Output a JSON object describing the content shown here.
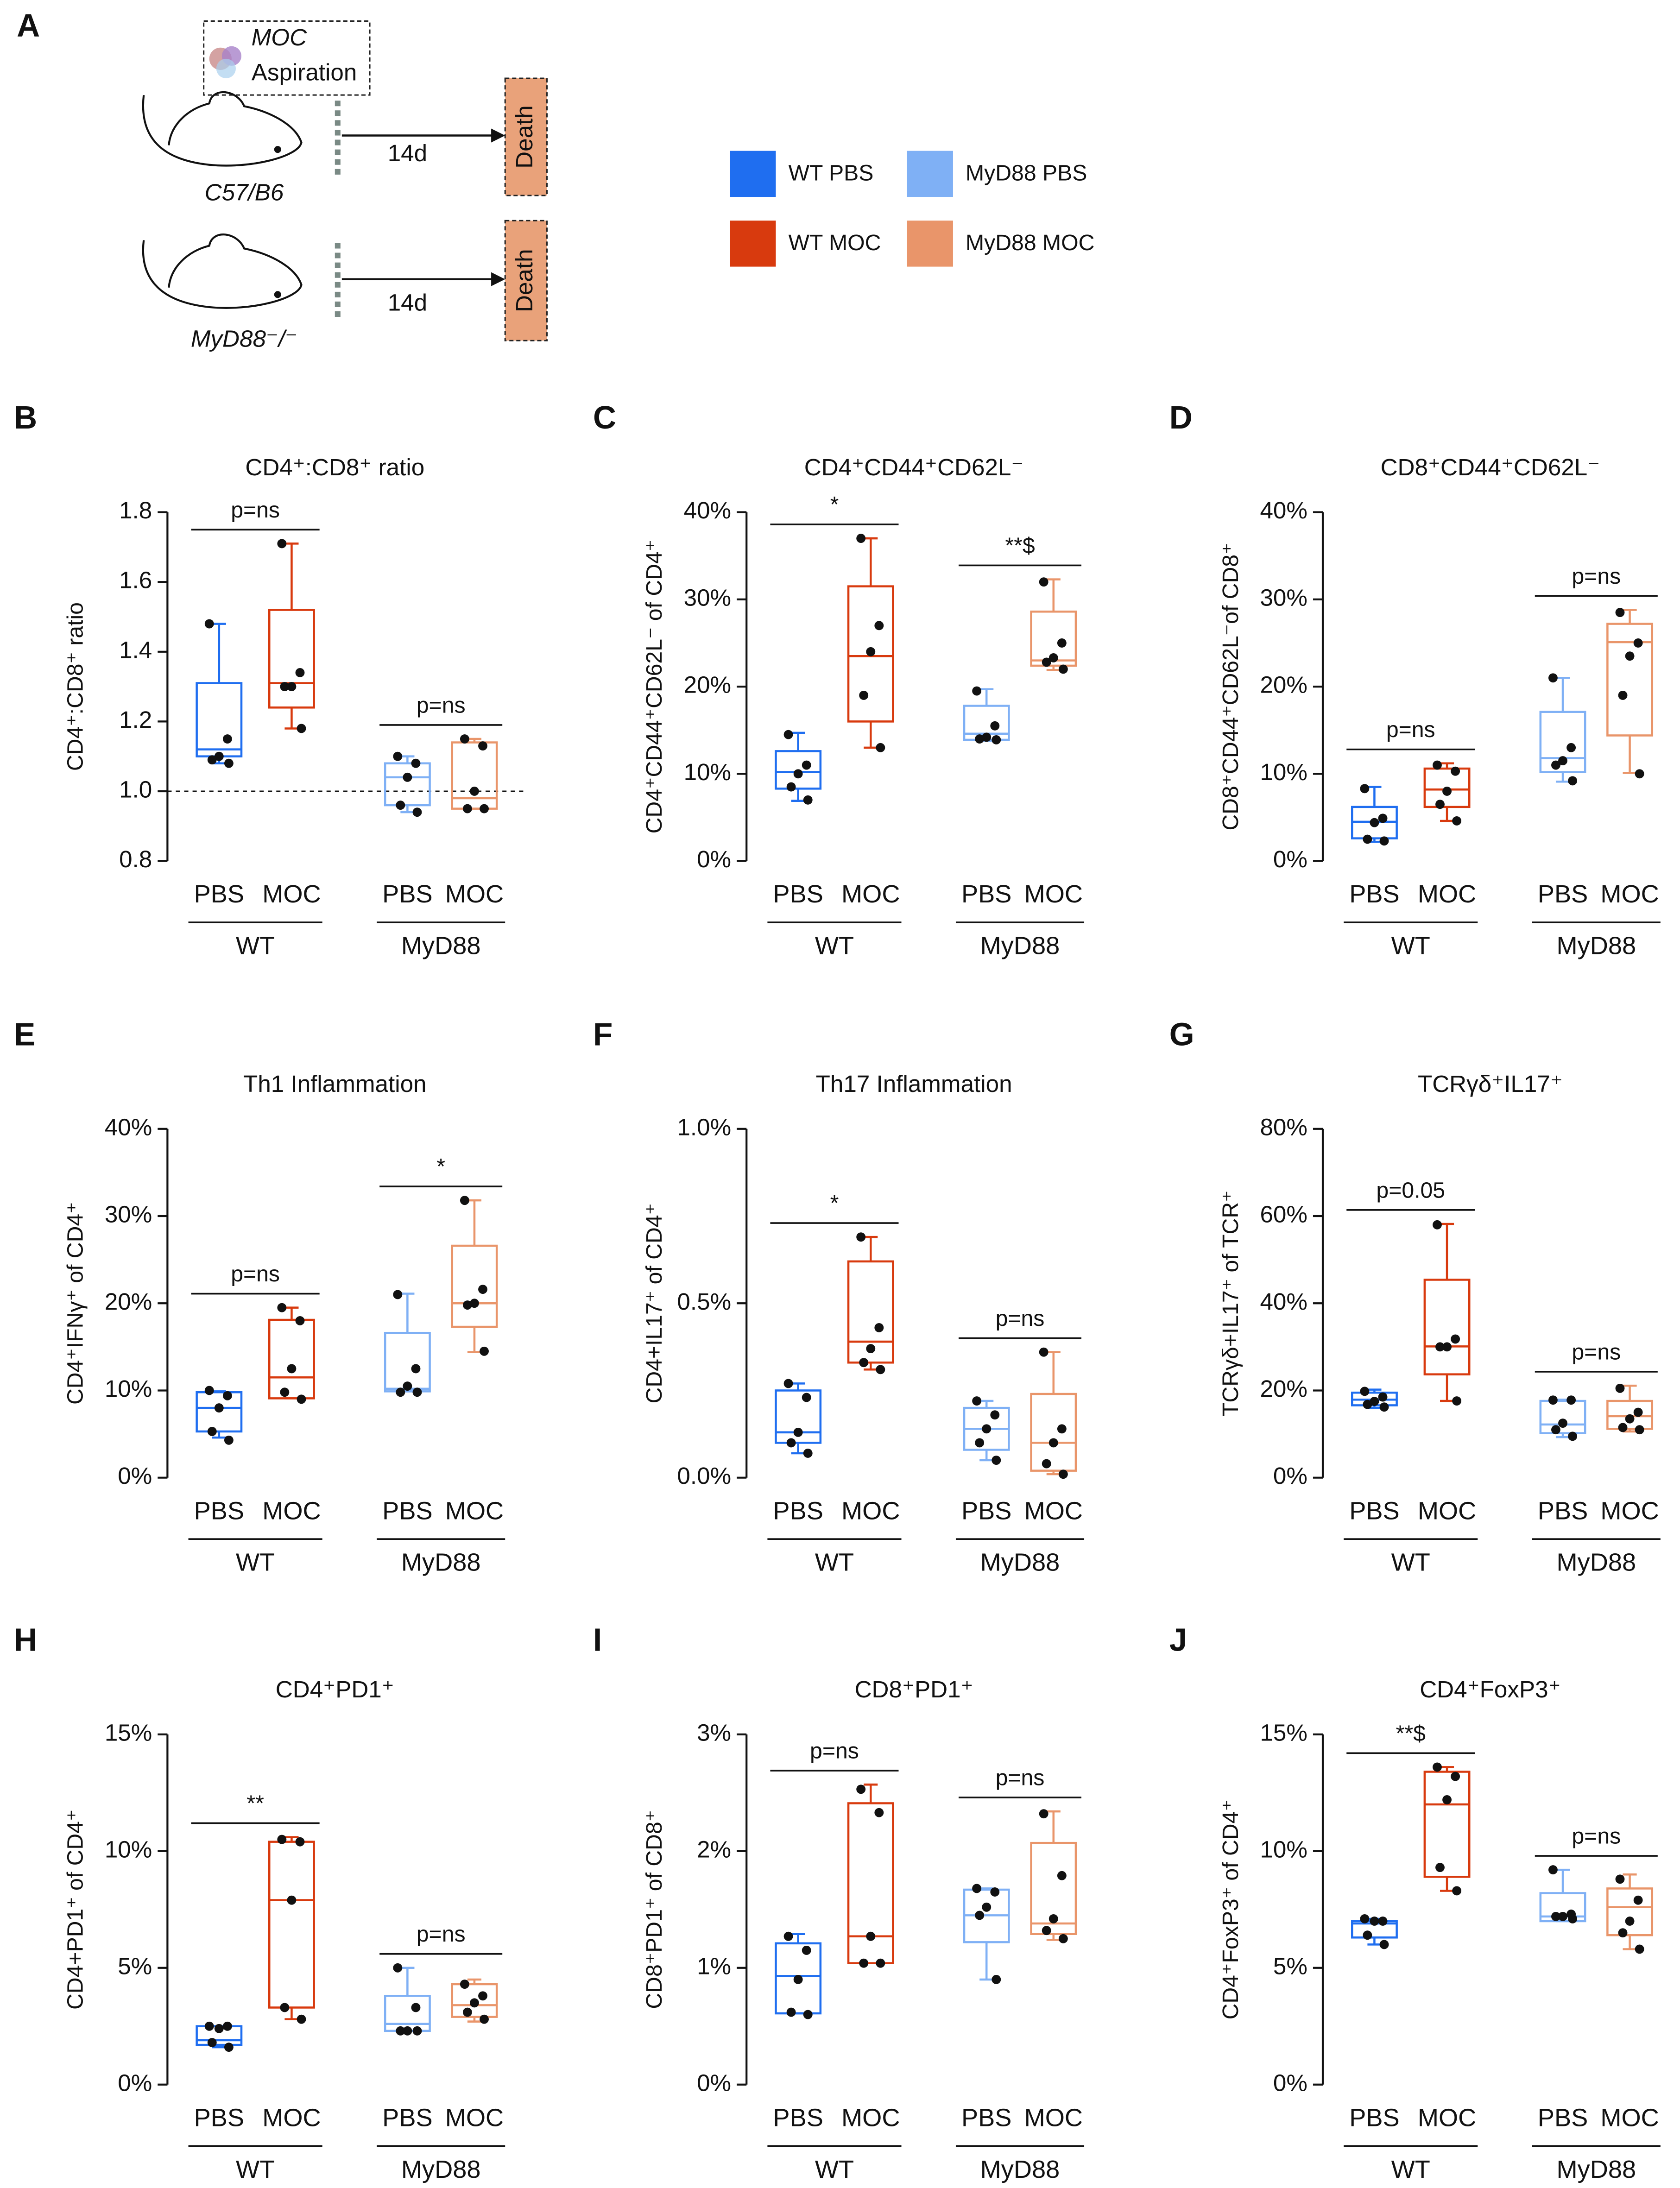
{
  "schematic": {
    "panel": "A",
    "agent": "MOC",
    "route": "Aspiration",
    "arms": [
      {
        "strain": "C57/B6",
        "duration": "14d",
        "outcome": "Death"
      },
      {
        "strain": "MyD88⁻/⁻",
        "duration": "14d",
        "outcome": "Death"
      }
    ]
  },
  "legend": [
    {
      "name": "WT PBS",
      "color": "#1f6ef0"
    },
    {
      "name": "WT MOC",
      "color": "#d83a0e"
    },
    {
      "name": "MyD88 PBS",
      "color": "#7fb0f5"
    },
    {
      "name": "MyD88 MOC",
      "color": "#e9956a"
    }
  ],
  "chart_data": [
    {
      "type": "box",
      "panel": "B",
      "title": "CD4⁺:CD8⁺ ratio",
      "y_label": "CD4⁺:CD8⁺ ratio",
      "categories": [
        "PBS",
        "MOC",
        "PBS",
        "MOC"
      ],
      "groups": [
        "WT",
        "MyD88"
      ],
      "ylim": [
        0.8,
        1.8
      ],
      "yticks": [
        {
          "value": 0.8,
          "label": "0.8"
        },
        {
          "value": 1,
          "label": "1.0"
        },
        {
          "value": 1.2,
          "label": "1.2"
        },
        {
          "value": 1.4,
          "label": "1.4"
        },
        {
          "value": 1.6,
          "label": "1.6"
        },
        {
          "value": 1.8,
          "label": "1.8"
        }
      ],
      "reference_line": 1,
      "boxes": [
        {
          "min": 1.08,
          "q1": 1.1,
          "median": 1.12,
          "q3": 1.31,
          "max": 1.48,
          "points": [
            1.48,
            1.15,
            1.1,
            1.09,
            1.08
          ]
        },
        {
          "min": 1.18,
          "q1": 1.24,
          "median": 1.31,
          "q3": 1.52,
          "max": 1.71,
          "points": [
            1.71,
            1.34,
            1.3,
            1.3,
            1.18
          ]
        },
        {
          "min": 0.94,
          "q1": 0.96,
          "median": 1.04,
          "q3": 1.08,
          "max": 1.1,
          "points": [
            1.1,
            1.08,
            1.04,
            0.96,
            0.94
          ]
        },
        {
          "min": 0.95,
          "q1": 0.95,
          "median": 0.98,
          "q3": 1.14,
          "max": 1.15,
          "points": [
            1.15,
            1.13,
            1,
            0.95,
            0.95
          ]
        }
      ],
      "annotations": [
        {
          "text": "p=ns",
          "over": "WT"
        },
        {
          "text": "p=ns",
          "over": "MyD88"
        }
      ]
    },
    {
      "type": "box",
      "panel": "C",
      "title": "CD4⁺CD44⁺CD62L⁻",
      "y_label": "CD4⁺CD44⁺CD62L⁻ of CD4⁺",
      "categories": [
        "PBS",
        "MOC",
        "PBS",
        "MOC"
      ],
      "groups": [
        "WT",
        "MyD88"
      ],
      "ylim": [
        0,
        40
      ],
      "yticks": [
        {
          "value": 0,
          "label": "0%"
        },
        {
          "value": 10,
          "label": "10%"
        },
        {
          "value": 20,
          "label": "20%"
        },
        {
          "value": 30,
          "label": "30%"
        },
        {
          "value": 40,
          "label": "40%"
        }
      ],
      "boxes": [
        {
          "min": 6.9,
          "q1": 8.3,
          "median": 10.2,
          "q3": 12.6,
          "max": 14.7,
          "points": [
            14.5,
            11,
            10,
            8.5,
            7
          ]
        },
        {
          "min": 13,
          "q1": 16,
          "median": 23.5,
          "q3": 31.5,
          "max": 37,
          "points": [
            37,
            27,
            24,
            19,
            13
          ]
        },
        {
          "min": 13.8,
          "q1": 13.9,
          "median": 14.6,
          "q3": 17.8,
          "max": 19.7,
          "points": [
            19.5,
            15.5,
            14.2,
            14,
            13.9
          ]
        },
        {
          "min": 21.9,
          "q1": 22.4,
          "median": 23,
          "q3": 28.6,
          "max": 32.3,
          "points": [
            32,
            25,
            23.3,
            22.8,
            22
          ]
        }
      ],
      "annotations": [
        {
          "text": "*",
          "over": "WT"
        },
        {
          "text": "**$",
          "over": "MyD88"
        }
      ]
    },
    {
      "type": "box",
      "panel": "D",
      "title": "CD8⁺CD44⁺CD62L⁻",
      "y_label": "CD8⁺CD44⁺CD62L⁻of CD8⁺",
      "categories": [
        "PBS",
        "MOC",
        "PBS",
        "MOC"
      ],
      "groups": [
        "WT",
        "MyD88"
      ],
      "ylim": [
        0,
        40
      ],
      "yticks": [
        {
          "value": 0,
          "label": "0%"
        },
        {
          "value": 10,
          "label": "10%"
        },
        {
          "value": 20,
          "label": "20%"
        },
        {
          "value": 30,
          "label": "30%"
        },
        {
          "value": 40,
          "label": "40%"
        }
      ],
      "boxes": [
        {
          "min": 2.2,
          "q1": 2.6,
          "median": 4.5,
          "q3": 6.2,
          "max": 8.5,
          "points": [
            8.3,
            4.9,
            4.4,
            2.5,
            2.3
          ]
        },
        {
          "min": 4.6,
          "q1": 6.2,
          "median": 8.2,
          "q3": 10.6,
          "max": 11.2,
          "points": [
            11,
            10.3,
            8,
            6.5,
            4.6
          ]
        },
        {
          "min": 9.1,
          "q1": 10.2,
          "median": 11.8,
          "q3": 17.1,
          "max": 21,
          "points": [
            21,
            13,
            11.5,
            11,
            9.2
          ]
        },
        {
          "min": 10.1,
          "q1": 14.4,
          "median": 25.1,
          "q3": 27.2,
          "max": 28.8,
          "points": [
            28.5,
            25,
            23.5,
            19,
            10
          ]
        }
      ],
      "annotations": [
        {
          "text": "p=ns",
          "over": "WT"
        },
        {
          "text": "p=ns",
          "over": "MyD88"
        }
      ]
    },
    {
      "type": "box",
      "panel": "E",
      "title": "Th1 Inflammation",
      "y_label": "CD4⁺IFNγ⁺ of CD4⁺",
      "categories": [
        "PBS",
        "MOC",
        "PBS",
        "MOC"
      ],
      "groups": [
        "WT",
        "MyD88"
      ],
      "ylim": [
        0,
        40
      ],
      "yticks": [
        {
          "value": 0,
          "label": "0%"
        },
        {
          "value": 10,
          "label": "10%"
        },
        {
          "value": 20,
          "label": "20%"
        },
        {
          "value": 30,
          "label": "30%"
        },
        {
          "value": 40,
          "label": "40%"
        }
      ],
      "boxes": [
        {
          "min": 4.6,
          "q1": 5.3,
          "median": 8,
          "q3": 9.8,
          "max": 9.9,
          "points": [
            10,
            9.4,
            8,
            5.3,
            4.3
          ]
        },
        {
          "min": 9.1,
          "q1": 9.1,
          "median": 11.5,
          "q3": 18.1,
          "max": 19.5,
          "points": [
            19.5,
            18,
            12.5,
            9.8,
            9
          ]
        },
        {
          "min": 9.9,
          "q1": 9.9,
          "median": 10.2,
          "q3": 16.6,
          "max": 21.1,
          "points": [
            21,
            12.5,
            10.5,
            9.8,
            9.8
          ]
        },
        {
          "min": 14.4,
          "q1": 17.3,
          "median": 20,
          "q3": 26.6,
          "max": 31.8,
          "points": [
            31.8,
            21.6,
            20,
            19.8,
            14.5
          ]
        }
      ],
      "annotations": [
        {
          "text": "p=ns",
          "over": "WT"
        },
        {
          "text": "*",
          "over": "MyD88"
        }
      ]
    },
    {
      "type": "box",
      "panel": "F",
      "title": "Th17 Inflammation",
      "y_label": "CD4+IL17⁺ of CD4⁺",
      "categories": [
        "PBS",
        "MOC",
        "PBS",
        "MOC"
      ],
      "groups": [
        "WT",
        "MyD88"
      ],
      "ylim": [
        0,
        1
      ],
      "yticks": [
        {
          "value": 0,
          "label": "0.0%"
        },
        {
          "value": 0.5,
          "label": "0.5%"
        },
        {
          "value": 1,
          "label": "1.0%"
        }
      ],
      "boxes": [
        {
          "min": 0.07,
          "q1": 0.1,
          "median": 0.13,
          "q3": 0.25,
          "max": 0.27,
          "points": [
            0.27,
            0.23,
            0.13,
            0.1,
            0.07
          ]
        },
        {
          "min": 0.31,
          "q1": 0.33,
          "median": 0.39,
          "q3": 0.62,
          "max": 0.69,
          "points": [
            0.69,
            0.43,
            0.37,
            0.33,
            0.31
          ]
        },
        {
          "min": 0.05,
          "q1": 0.08,
          "median": 0.14,
          "q3": 0.2,
          "max": 0.22,
          "points": [
            0.22,
            0.18,
            0.14,
            0.1,
            0.05
          ]
        },
        {
          "min": 0.01,
          "q1": 0.02,
          "median": 0.1,
          "q3": 0.24,
          "max": 0.36,
          "points": [
            0.36,
            0.14,
            0.1,
            0.04,
            0.01
          ]
        }
      ],
      "annotations": [
        {
          "text": "*",
          "over": "WT"
        },
        {
          "text": "p=ns",
          "over": "MyD88"
        }
      ]
    },
    {
      "type": "box",
      "panel": "G",
      "title": "TCRγδ⁺IL17⁺",
      "y_label": "TCRγδ+IL17⁺ of TCR⁺",
      "categories": [
        "PBS",
        "MOC",
        "PBS",
        "MOC"
      ],
      "groups": [
        "WT",
        "MyD88"
      ],
      "ylim": [
        0,
        80
      ],
      "yticks": [
        {
          "value": 0,
          "label": "0%"
        },
        {
          "value": 20,
          "label": "20%"
        },
        {
          "value": 40,
          "label": "40%"
        },
        {
          "value": 60,
          "label": "60%"
        },
        {
          "value": 80,
          "label": "80%"
        }
      ],
      "boxes": [
        {
          "min": 16,
          "q1": 16.6,
          "median": 17.9,
          "q3": 19.5,
          "max": 20.2,
          "points": [
            19.8,
            18.5,
            17.5,
            16.8,
            16.2
          ]
        },
        {
          "min": 17.6,
          "q1": 23.7,
          "median": 30.1,
          "q3": 45.4,
          "max": 58.2,
          "points": [
            58,
            31.8,
            30,
            30,
            17.6
          ]
        },
        {
          "min": 9.3,
          "q1": 10.2,
          "median": 12.2,
          "q3": 17.6,
          "max": 17.9,
          "points": [
            17.8,
            17.8,
            12.5,
            11,
            9.5
          ]
        },
        {
          "min": 10.6,
          "q1": 11.2,
          "median": 14.1,
          "q3": 17.6,
          "max": 21.1,
          "points": [
            20.5,
            15,
            13.5,
            11.5,
            11
          ]
        }
      ],
      "annotations": [
        {
          "text": "p=0.05",
          "over": "WT"
        },
        {
          "text": "p=ns",
          "over": "MyD88"
        }
      ]
    },
    {
      "type": "box",
      "panel": "H",
      "title": "CD4⁺PD1⁺",
      "y_label": "CD4+PD1⁺ of CD4⁺",
      "categories": [
        "PBS",
        "MOC",
        "PBS",
        "MOC"
      ],
      "groups": [
        "WT",
        "MyD88"
      ],
      "ylim": [
        0,
        15
      ],
      "yticks": [
        {
          "value": 0,
          "label": "0%"
        },
        {
          "value": 5,
          "label": "5%"
        },
        {
          "value": 10,
          "label": "10%"
        },
        {
          "value": 15,
          "label": "15%"
        }
      ],
      "boxes": [
        {
          "min": 1.6,
          "q1": 1.7,
          "median": 1.9,
          "q3": 2.5,
          "max": 2.5,
          "points": [
            2.5,
            2.5,
            2.4,
            1.8,
            1.6
          ]
        },
        {
          "min": 2.8,
          "q1": 3.3,
          "median": 7.9,
          "q3": 10.4,
          "max": 10.6,
          "points": [
            10.5,
            10.4,
            7.9,
            3.3,
            2.8
          ]
        },
        {
          "min": 2.3,
          "q1": 2.3,
          "median": 2.6,
          "q3": 3.8,
          "max": 5,
          "points": [
            5,
            3.3,
            2.3,
            2.3,
            2.3
          ]
        },
        {
          "min": 2.7,
          "q1": 2.9,
          "median": 3.4,
          "q3": 4.3,
          "max": 4.5,
          "points": [
            4.3,
            3.8,
            3.5,
            3.1,
            2.8
          ]
        }
      ],
      "annotations": [
        {
          "text": "**",
          "over": "WT"
        },
        {
          "text": "p=ns",
          "over": "MyD88"
        }
      ]
    },
    {
      "type": "box",
      "panel": "I",
      "title": "CD8⁺PD1⁺",
      "y_label": "CD8⁺PD1⁺ of CD8⁺",
      "categories": [
        "PBS",
        "MOC",
        "PBS",
        "MOC"
      ],
      "groups": [
        "WT",
        "MyD88"
      ],
      "ylim": [
        0,
        3
      ],
      "yticks": [
        {
          "value": 0,
          "label": "0%"
        },
        {
          "value": 1,
          "label": "1%"
        },
        {
          "value": 2,
          "label": "2%"
        },
        {
          "value": 3,
          "label": "3%"
        }
      ],
      "boxes": [
        {
          "min": 0.61,
          "q1": 0.61,
          "median": 0.93,
          "q3": 1.21,
          "max": 1.29,
          "points": [
            1.27,
            1.15,
            0.9,
            0.62,
            0.6
          ]
        },
        {
          "min": 1.04,
          "q1": 1.04,
          "median": 1.27,
          "q3": 2.41,
          "max": 2.57,
          "points": [
            2.53,
            2.33,
            1.27,
            1.04,
            1.04
          ]
        },
        {
          "min": 0.9,
          "q1": 1.22,
          "median": 1.45,
          "q3": 1.67,
          "max": 1.68,
          "points": [
            1.68,
            1.65,
            1.52,
            1.45,
            0.9
          ]
        },
        {
          "min": 1.24,
          "q1": 1.29,
          "median": 1.38,
          "q3": 2.07,
          "max": 2.34,
          "points": [
            2.32,
            1.79,
            1.42,
            1.32,
            1.25
          ]
        }
      ],
      "annotations": [
        {
          "text": "p=ns",
          "over": "WT"
        },
        {
          "text": "p=ns",
          "over": "MyD88"
        }
      ]
    },
    {
      "type": "box",
      "panel": "J",
      "title": "CD4⁺FoxP3⁺",
      "y_label": "CD4⁺FoxP3⁺ of CD4⁺",
      "categories": [
        "PBS",
        "MOC",
        "PBS",
        "MOC"
      ],
      "groups": [
        "WT",
        "MyD88"
      ],
      "ylim": [
        0,
        15
      ],
      "yticks": [
        {
          "value": 0,
          "label": "0%"
        },
        {
          "value": 5,
          "label": "5%"
        },
        {
          "value": 10,
          "label": "10%"
        },
        {
          "value": 15,
          "label": "15%"
        }
      ],
      "boxes": [
        {
          "min": 6,
          "q1": 6.3,
          "median": 6.9,
          "q3": 7,
          "max": 7.1,
          "points": [
            7.1,
            7,
            7,
            6.4,
            6
          ]
        },
        {
          "min": 8.3,
          "q1": 8.9,
          "median": 12,
          "q3": 13.4,
          "max": 13.6,
          "points": [
            13.6,
            13.2,
            12.2,
            9.3,
            8.3
          ]
        },
        {
          "min": 7,
          "q1": 7,
          "median": 7.2,
          "q3": 8.2,
          "max": 9.2,
          "points": [
            9.2,
            7.3,
            7.2,
            7.2,
            7.1
          ]
        },
        {
          "min": 5.8,
          "q1": 6.4,
          "median": 7.6,
          "q3": 8.4,
          "max": 9,
          "points": [
            8.8,
            7.9,
            7,
            6.5,
            5.8
          ]
        }
      ],
      "annotations": [
        {
          "text": "**$",
          "over": "WT"
        },
        {
          "text": "p=ns",
          "over": "MyD88"
        }
      ]
    }
  ]
}
